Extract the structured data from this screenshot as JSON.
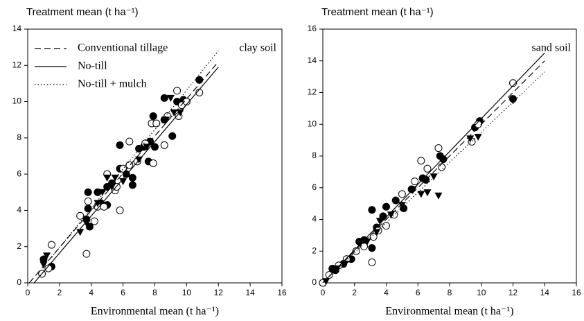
{
  "chart_data": [
    {
      "type": "scatter",
      "title": "Treatment mean (t ha⁻¹)",
      "xlabel": "Environmental mean (t ha⁻¹)",
      "annotation": "clay soil",
      "xlim": [
        0,
        16
      ],
      "ylim": [
        0,
        14
      ],
      "xticks": [
        0,
        2,
        4,
        6,
        8,
        10,
        12,
        14,
        16
      ],
      "yticks": [
        0,
        2,
        4,
        6,
        8,
        10,
        12,
        14
      ],
      "legend": "upper left",
      "series": [
        {
          "marker": "filled-circle",
          "x": [
            1,
            1.5,
            3.7,
            3.8,
            3.8,
            3.9,
            4.4,
            4.6,
            5,
            5,
            5.3,
            5.8,
            5.8,
            6.2,
            6.6,
            6.6,
            7,
            7.3,
            7.6,
            7.9,
            8,
            8.6,
            8.6,
            9.1,
            9.4,
            9.8,
            10.8,
            7.7
          ],
          "values": [
            1.3,
            0.9,
            3.5,
            4.1,
            5,
            3.1,
            5,
            4.4,
            4.3,
            5.3,
            5.5,
            7.6,
            6.3,
            6,
            5.4,
            5.8,
            7.4,
            7.5,
            6.7,
            9.2,
            7.5,
            10.2,
            9,
            8.1,
            10,
            10.1,
            11.2,
            7.8
          ]
        },
        {
          "marker": "open-circle",
          "x": [
            0.9,
            1.3,
            1.5,
            3.3,
            3.7,
            3.8,
            4.2,
            4.4,
            4.8,
            5,
            5.5,
            5.8,
            5.6,
            6,
            6.4,
            6.4,
            6.9,
            7.4,
            7.8,
            7.9,
            8.1,
            8.6,
            8.8,
            9.4,
            9.5,
            9.7,
            10,
            10.8
          ],
          "values": [
            0.5,
            0.8,
            2.1,
            3.7,
            1.6,
            4.5,
            3.4,
            4.2,
            4.2,
            6,
            5.1,
            4,
            5.3,
            6.3,
            7.8,
            6.5,
            6.7,
            7.7,
            8.8,
            6.6,
            8.8,
            7.6,
            9.2,
            10.6,
            9.2,
            9.8,
            10,
            10.5
          ]
        },
        {
          "marker": "filled-triangle",
          "x": [
            1,
            1.2,
            3.3,
            3.7,
            4.4,
            4.7,
            5,
            5.3,
            5.5,
            6,
            7,
            7.5,
            8.7,
            9.2,
            9.6,
            9
          ],
          "values": [
            1,
            1.5,
            2.8,
            3.3,
            4.4,
            5,
            5.8,
            5.3,
            5.8,
            5.6,
            6.8,
            7.5,
            9,
            9.4,
            9.4,
            10.2
          ]
        },
        {
          "name": "Conventional tillage",
          "style": "dashed",
          "x": [
            0.1,
            12
          ],
          "values": [
            0,
            12.2
          ]
        },
        {
          "name": "No-till",
          "style": "solid",
          "x": [
            0.4,
            12
          ],
          "values": [
            0,
            11.9
          ]
        },
        {
          "name": "No-till + mulch",
          "style": "dotted",
          "x": [
            1.5,
            12
          ],
          "values": [
            1.4,
            12.8
          ]
        }
      ]
    },
    {
      "type": "scatter",
      "title": "Treatment mean (t ha⁻¹)",
      "xlabel": "Environmental mean (t ha⁻¹)",
      "annotation": "sand soil",
      "xlim": [
        0,
        16
      ],
      "ylim": [
        0,
        16
      ],
      "xticks": [
        0,
        2,
        4,
        6,
        8,
        10,
        12,
        14,
        16
      ],
      "yticks": [
        0,
        2,
        4,
        6,
        8,
        10,
        12,
        14,
        16
      ],
      "series": [
        {
          "marker": "filled-circle",
          "x": [
            0,
            0.6,
            0.8,
            1.3,
            1.8,
            2.3,
            2.6,
            3.1,
            3.1,
            3.4,
            3.8,
            4,
            4.6,
            5.1,
            5.6,
            6.3,
            6.5,
            7.4,
            7.6,
            9.6,
            9.9,
            12
          ],
          "values": [
            0,
            0.9,
            0.8,
            1.2,
            1.5,
            2.6,
            2.7,
            2.2,
            4.6,
            3.5,
            4.2,
            4.8,
            5.2,
            4.7,
            5.9,
            6.6,
            6.5,
            8,
            7.8,
            9.8,
            10.2,
            11.6
          ]
        },
        {
          "marker": "open-circle",
          "x": [
            0,
            0.4,
            1,
            1.5,
            2.1,
            2.6,
            3.1,
            3.2,
            3.5,
            4,
            4.5,
            5,
            5.8,
            6.2,
            6.6,
            7.3,
            7.5,
            9.4,
            9.8,
            12
          ],
          "values": [
            0,
            0.5,
            1.1,
            1.5,
            2,
            2.3,
            1.3,
            2.9,
            3.3,
            3.6,
            4.3,
            5.6,
            6.4,
            7.7,
            7.2,
            8.5,
            7.3,
            8.9,
            10,
            12.6
          ]
        },
        {
          "marker": "filled-triangle",
          "x": [
            0.2,
            0.9,
            1.4,
            2.3,
            2.8,
            3.4,
            3.6,
            4.3,
            5,
            5.7,
            6.2,
            6.6,
            7,
            7.3,
            9.3,
            9.8,
            12
          ],
          "values": [
            0.1,
            0.9,
            1.2,
            2.5,
            2.6,
            3.2,
            3.9,
            4.3,
            4.9,
            5.9,
            5.6,
            5.7,
            6.7,
            5.5,
            9.1,
            9.2,
            11.5
          ]
        },
        {
          "style": "solid",
          "x": [
            0,
            14
          ],
          "values": [
            0,
            14.5
          ]
        },
        {
          "style": "dashed",
          "x": [
            0,
            14
          ],
          "values": [
            0,
            14
          ]
        },
        {
          "style": "dotted",
          "x": [
            0,
            14
          ],
          "values": [
            0,
            13.3
          ]
        }
      ]
    }
  ]
}
